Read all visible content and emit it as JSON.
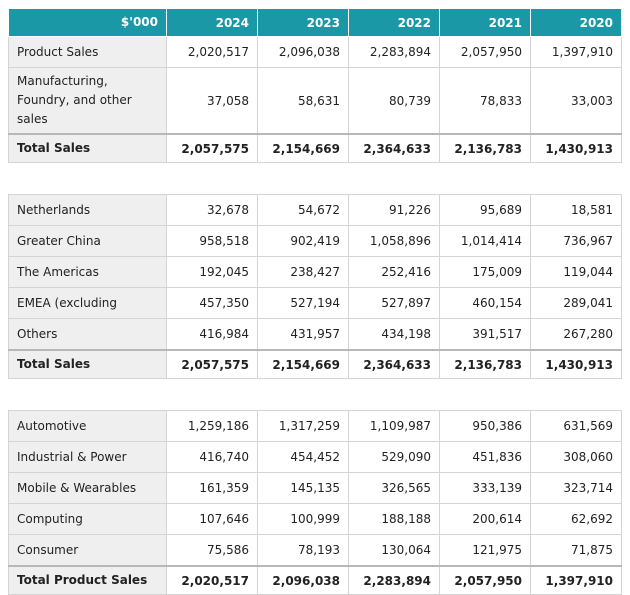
{
  "header": [
    "$'000",
    "2024",
    "2023",
    "2022",
    "2021",
    "2020"
  ],
  "sections": [
    {
      "rows": [
        [
          "Product Sales",
          "2,020,517",
          "2,096,038",
          "2,283,894",
          "2,057,950",
          "1,397,910"
        ],
        [
          "Manufacturing, Foundry, and other sales",
          "37,058",
          "58,631",
          "80,739",
          "78,833",
          "33,003"
        ]
      ],
      "total": [
        "Total Sales",
        "2,057,575",
        "2,154,669",
        "2,364,633",
        "2,136,783",
        "1,430,913"
      ]
    },
    {
      "rows": [
        [
          "Netherlands",
          "32,678",
          "54,672",
          "91,226",
          "95,689",
          "18,581"
        ],
        [
          "Greater China",
          "958,518",
          "902,419",
          "1,058,896",
          "1,014,414",
          "736,967"
        ],
        [
          "The Americas",
          "192,045",
          "238,427",
          "252,416",
          "175,009",
          "119,044"
        ],
        [
          "EMEA (excluding",
          "457,350",
          "527,194",
          "527,897",
          "460,154",
          "289,041"
        ],
        [
          "Others",
          "416,984",
          "431,957",
          "434,198",
          "391,517",
          "267,280"
        ]
      ],
      "total": [
        "Total Sales",
        "2,057,575",
        "2,154,669",
        "2,364,633",
        "2,136,783",
        "1,430,913"
      ]
    },
    {
      "rows": [
        [
          "Automotive",
          "1,259,186",
          "1,317,259",
          "1,109,987",
          "950,386",
          "631,569"
        ],
        [
          "Industrial & Power",
          "416,740",
          "454,452",
          "529,090",
          "451,836",
          "308,060"
        ],
        [
          "Mobile & Wearables",
          "161,359",
          "145,135",
          "326,565",
          "333,139",
          "323,714"
        ],
        [
          "Computing",
          "107,646",
          "100,999",
          "188,188",
          "200,614",
          "62,692"
        ],
        [
          "Consumer",
          "75,586",
          "78,193",
          "130,064",
          "121,975",
          "71,875"
        ]
      ],
      "total": [
        "Total Product Sales",
        "2,020,517",
        "2,096,038",
        "2,283,894",
        "2,057,950",
        "1,397,910"
      ]
    }
  ]
}
